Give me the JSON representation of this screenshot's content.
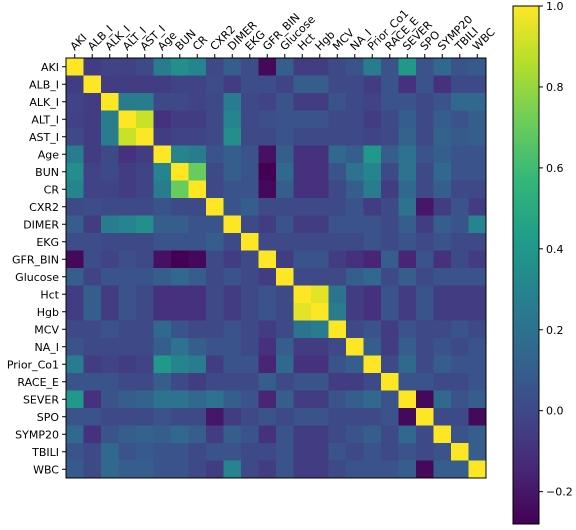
{
  "chart_data": {
    "type": "heatmap",
    "title": "",
    "xlabel": "",
    "ylabel": "",
    "variables": [
      "AKI",
      "ALB_I",
      "ALK_I",
      "ALT_I",
      "AST_I",
      "Age",
      "BUN",
      "CR",
      "CXR2",
      "DIMER",
      "EKG",
      "GFR_BIN",
      "Glucose",
      "Hct",
      "Hgb",
      "MCV",
      "NA_I",
      "Prior_Co1",
      "RACE_E",
      "SEVER",
      "SPO",
      "SYMP20",
      "TBILI",
      "WBC"
    ],
    "x_tick_labels": [
      "AKI",
      "ALB_I",
      "ALK_I",
      "ALT_I",
      "AST_I",
      "Age",
      "BUN",
      "CR",
      "CXR2",
      "DIMER",
      "EKG",
      "GFR_BIN",
      "Glucose",
      "Hct",
      "Hgb",
      "MCV",
      "NA_I",
      "Prior_Co1",
      "RACE_E",
      "SEVER",
      "SPO",
      "SYMP20",
      "TBILI",
      "WBC"
    ],
    "y_tick_labels": [
      "AKI",
      "ALB_I",
      "ALK_I",
      "ALT_I",
      "AST_I",
      "Age",
      "BUN",
      "CR",
      "CXR2",
      "DIMER",
      "EKG",
      "GFR_BIN",
      "Glucose",
      "Hct",
      "Hgb",
      "MCV",
      "NA_I",
      "Prior_Co1",
      "RACE_E",
      "SEVER",
      "SPO",
      "SYMP20",
      "TBILI",
      "WBC"
    ],
    "colormap": "viridis",
    "vmin": -0.28,
    "vmax": 1.0,
    "colorbar_ticks": [
      "1.0",
      "0.8",
      "0.6",
      "0.4",
      "0.2",
      "0.0",
      "−0.2"
    ],
    "colorbar_tick_values": [
      1.0,
      0.8,
      0.6,
      0.4,
      0.2,
      0.0,
      -0.2
    ],
    "values": [
      [
        1.0,
        -0.05,
        -0.02,
        -0.03,
        0.0,
        0.25,
        0.35,
        0.3,
        0.0,
        0.1,
        0.02,
        -0.25,
        0.1,
        -0.05,
        -0.05,
        0.0,
        0.05,
        0.25,
        0.05,
        0.4,
        0.05,
        0.15,
        0.05,
        0.08
      ],
      [
        -0.05,
        1.0,
        -0.05,
        -0.05,
        -0.05,
        -0.05,
        -0.02,
        -0.02,
        0.02,
        -0.05,
        0.02,
        0.02,
        -0.02,
        0.1,
        0.1,
        0.0,
        0.0,
        -0.05,
        0.05,
        -0.1,
        0.05,
        -0.1,
        0.0,
        0.0
      ],
      [
        -0.02,
        -0.05,
        1.0,
        0.25,
        0.25,
        0.0,
        0.0,
        -0.02,
        0.0,
        0.25,
        0.0,
        -0.02,
        0.05,
        -0.05,
        -0.05,
        0.05,
        0.0,
        -0.02,
        0.05,
        0.05,
        0.0,
        0.05,
        0.15,
        0.15
      ],
      [
        -0.03,
        -0.05,
        0.25,
        1.0,
        0.9,
        -0.1,
        -0.05,
        -0.05,
        0.0,
        0.3,
        0.0,
        0.03,
        0.05,
        0.05,
        0.05,
        0.0,
        0.0,
        -0.05,
        0.0,
        0.1,
        0.0,
        0.1,
        0.05,
        0.1
      ],
      [
        0.0,
        -0.05,
        0.25,
        0.9,
        1.0,
        -0.05,
        -0.02,
        -0.02,
        0.0,
        0.35,
        0.0,
        0.0,
        0.05,
        0.0,
        0.0,
        0.0,
        0.0,
        -0.02,
        0.0,
        0.12,
        0.0,
        0.12,
        0.08,
        0.1
      ],
      [
        0.25,
        -0.05,
        0.0,
        -0.1,
        -0.05,
        1.0,
        0.3,
        0.25,
        0.05,
        0.1,
        0.05,
        -0.22,
        0.1,
        -0.1,
        -0.1,
        0.15,
        0.1,
        0.4,
        0.1,
        0.2,
        0.05,
        0.1,
        0.05,
        0.05
      ],
      [
        0.35,
        -0.02,
        0.0,
        -0.05,
        -0.02,
        0.3,
        1.0,
        0.7,
        0.0,
        0.1,
        0.05,
        -0.28,
        0.15,
        -0.1,
        -0.1,
        0.05,
        0.2,
        0.3,
        0.0,
        0.2,
        0.0,
        0.15,
        0.05,
        0.05
      ],
      [
        0.3,
        -0.02,
        -0.02,
        -0.05,
        -0.02,
        0.25,
        0.7,
        1.0,
        0.0,
        0.05,
        0.05,
        -0.25,
        0.1,
        -0.1,
        -0.1,
        0.0,
        0.1,
        0.25,
        -0.05,
        0.15,
        0.0,
        0.1,
        0.0,
        0.0
      ],
      [
        0.0,
        0.02,
        0.0,
        0.0,
        0.0,
        0.05,
        0.0,
        0.0,
        1.0,
        0.05,
        0.1,
        0.0,
        0.0,
        0.0,
        0.0,
        0.0,
        0.05,
        -0.05,
        0.0,
        0.2,
        -0.2,
        -0.05,
        0.05,
        -0.05
      ],
      [
        0.1,
        -0.05,
        0.25,
        0.3,
        0.35,
        0.1,
        0.1,
        0.05,
        0.05,
        1.0,
        0.0,
        -0.05,
        0.05,
        -0.05,
        -0.05,
        0.05,
        0.05,
        0.05,
        0.0,
        0.1,
        -0.05,
        0.1,
        0.05,
        0.3
      ],
      [
        0.02,
        0.02,
        0.0,
        0.0,
        0.0,
        0.05,
        0.05,
        0.05,
        0.1,
        0.0,
        1.0,
        0.0,
        0.0,
        0.0,
        0.0,
        0.0,
        0.0,
        0.05,
        0.0,
        0.05,
        0.0,
        0.05,
        0.0,
        0.0
      ],
      [
        -0.25,
        0.02,
        -0.02,
        0.03,
        0.0,
        -0.22,
        -0.28,
        -0.25,
        0.0,
        -0.05,
        0.0,
        1.0,
        -0.05,
        0.05,
        0.05,
        -0.05,
        -0.1,
        -0.15,
        0.1,
        -0.15,
        0.05,
        -0.1,
        0.0,
        -0.05
      ],
      [
        0.1,
        -0.02,
        0.05,
        0.05,
        0.05,
        0.1,
        0.15,
        0.1,
        0.0,
        0.05,
        0.0,
        -0.05,
        1.0,
        0.0,
        0.0,
        0.0,
        0.1,
        0.15,
        0.0,
        0.1,
        0.0,
        0.05,
        0.05,
        0.05
      ],
      [
        -0.05,
        0.1,
        -0.05,
        0.05,
        0.0,
        -0.1,
        -0.1,
        -0.1,
        0.0,
        -0.05,
        0.0,
        0.05,
        0.0,
        1.0,
        0.95,
        0.2,
        -0.05,
        -0.1,
        0.05,
        -0.05,
        0.05,
        -0.05,
        -0.05,
        -0.05
      ],
      [
        -0.05,
        0.1,
        -0.05,
        0.05,
        0.0,
        -0.1,
        -0.1,
        -0.1,
        0.0,
        -0.05,
        0.0,
        0.05,
        0.0,
        0.95,
        1.0,
        0.25,
        -0.05,
        -0.1,
        0.05,
        -0.05,
        0.05,
        -0.05,
        -0.05,
        -0.05
      ],
      [
        0.0,
        0.0,
        0.05,
        0.0,
        0.0,
        0.15,
        0.05,
        0.0,
        0.0,
        0.05,
        0.0,
        -0.05,
        0.0,
        0.2,
        0.25,
        1.0,
        0.0,
        0.05,
        -0.05,
        0.05,
        0.0,
        0.0,
        0.05,
        0.0
      ],
      [
        0.05,
        0.0,
        0.0,
        0.0,
        0.0,
        0.1,
        0.2,
        0.1,
        0.05,
        0.05,
        0.0,
        -0.1,
        0.1,
        -0.05,
        -0.05,
        0.0,
        1.0,
        0.1,
        -0.05,
        0.1,
        0.0,
        0.05,
        0.0,
        0.05
      ],
      [
        0.25,
        -0.05,
        -0.02,
        -0.05,
        -0.02,
        0.4,
        0.3,
        0.25,
        -0.05,
        0.05,
        0.05,
        -0.15,
        0.15,
        -0.1,
        -0.1,
        0.05,
        0.1,
        1.0,
        0.0,
        0.15,
        0.0,
        0.1,
        0.05,
        0.05
      ],
      [
        0.05,
        0.05,
        0.05,
        0.0,
        0.0,
        0.1,
        0.0,
        -0.05,
        0.0,
        0.0,
        0.0,
        0.1,
        0.0,
        0.05,
        0.05,
        -0.05,
        -0.05,
        0.0,
        1.0,
        0.05,
        0.05,
        0.0,
        0.0,
        0.05
      ],
      [
        0.4,
        -0.1,
        0.05,
        0.1,
        0.12,
        0.2,
        0.2,
        0.15,
        0.2,
        0.1,
        0.05,
        -0.15,
        0.1,
        -0.05,
        -0.05,
        0.05,
        0.1,
        0.15,
        0.05,
        1.0,
        -0.25,
        0.15,
        0.05,
        0.1
      ],
      [
        0.05,
        0.05,
        0.0,
        0.0,
        0.0,
        0.05,
        0.0,
        0.0,
        -0.2,
        -0.05,
        0.0,
        0.05,
        0.0,
        0.05,
        0.05,
        0.0,
        0.0,
        0.0,
        0.05,
        -0.25,
        1.0,
        0.0,
        0.0,
        -0.25
      ],
      [
        0.15,
        -0.1,
        0.05,
        0.1,
        0.12,
        0.1,
        0.15,
        0.1,
        -0.05,
        0.1,
        0.05,
        -0.1,
        0.05,
        -0.05,
        -0.05,
        0.0,
        0.05,
        0.1,
        0.0,
        0.15,
        0.0,
        1.0,
        0.05,
        0.1
      ],
      [
        0.05,
        0.0,
        0.15,
        0.05,
        0.08,
        0.05,
        0.05,
        0.0,
        0.05,
        0.05,
        0.0,
        0.0,
        0.05,
        -0.05,
        -0.05,
        0.05,
        0.0,
        0.05,
        0.0,
        0.05,
        0.0,
        0.05,
        1.0,
        0.1
      ],
      [
        0.08,
        0.0,
        0.15,
        0.1,
        0.1,
        0.05,
        0.05,
        0.0,
        -0.05,
        0.3,
        0.0,
        -0.05,
        0.05,
        -0.05,
        -0.05,
        0.0,
        0.05,
        0.05,
        0.05,
        0.1,
        -0.25,
        0.1,
        0.1,
        1.0
      ]
    ]
  }
}
